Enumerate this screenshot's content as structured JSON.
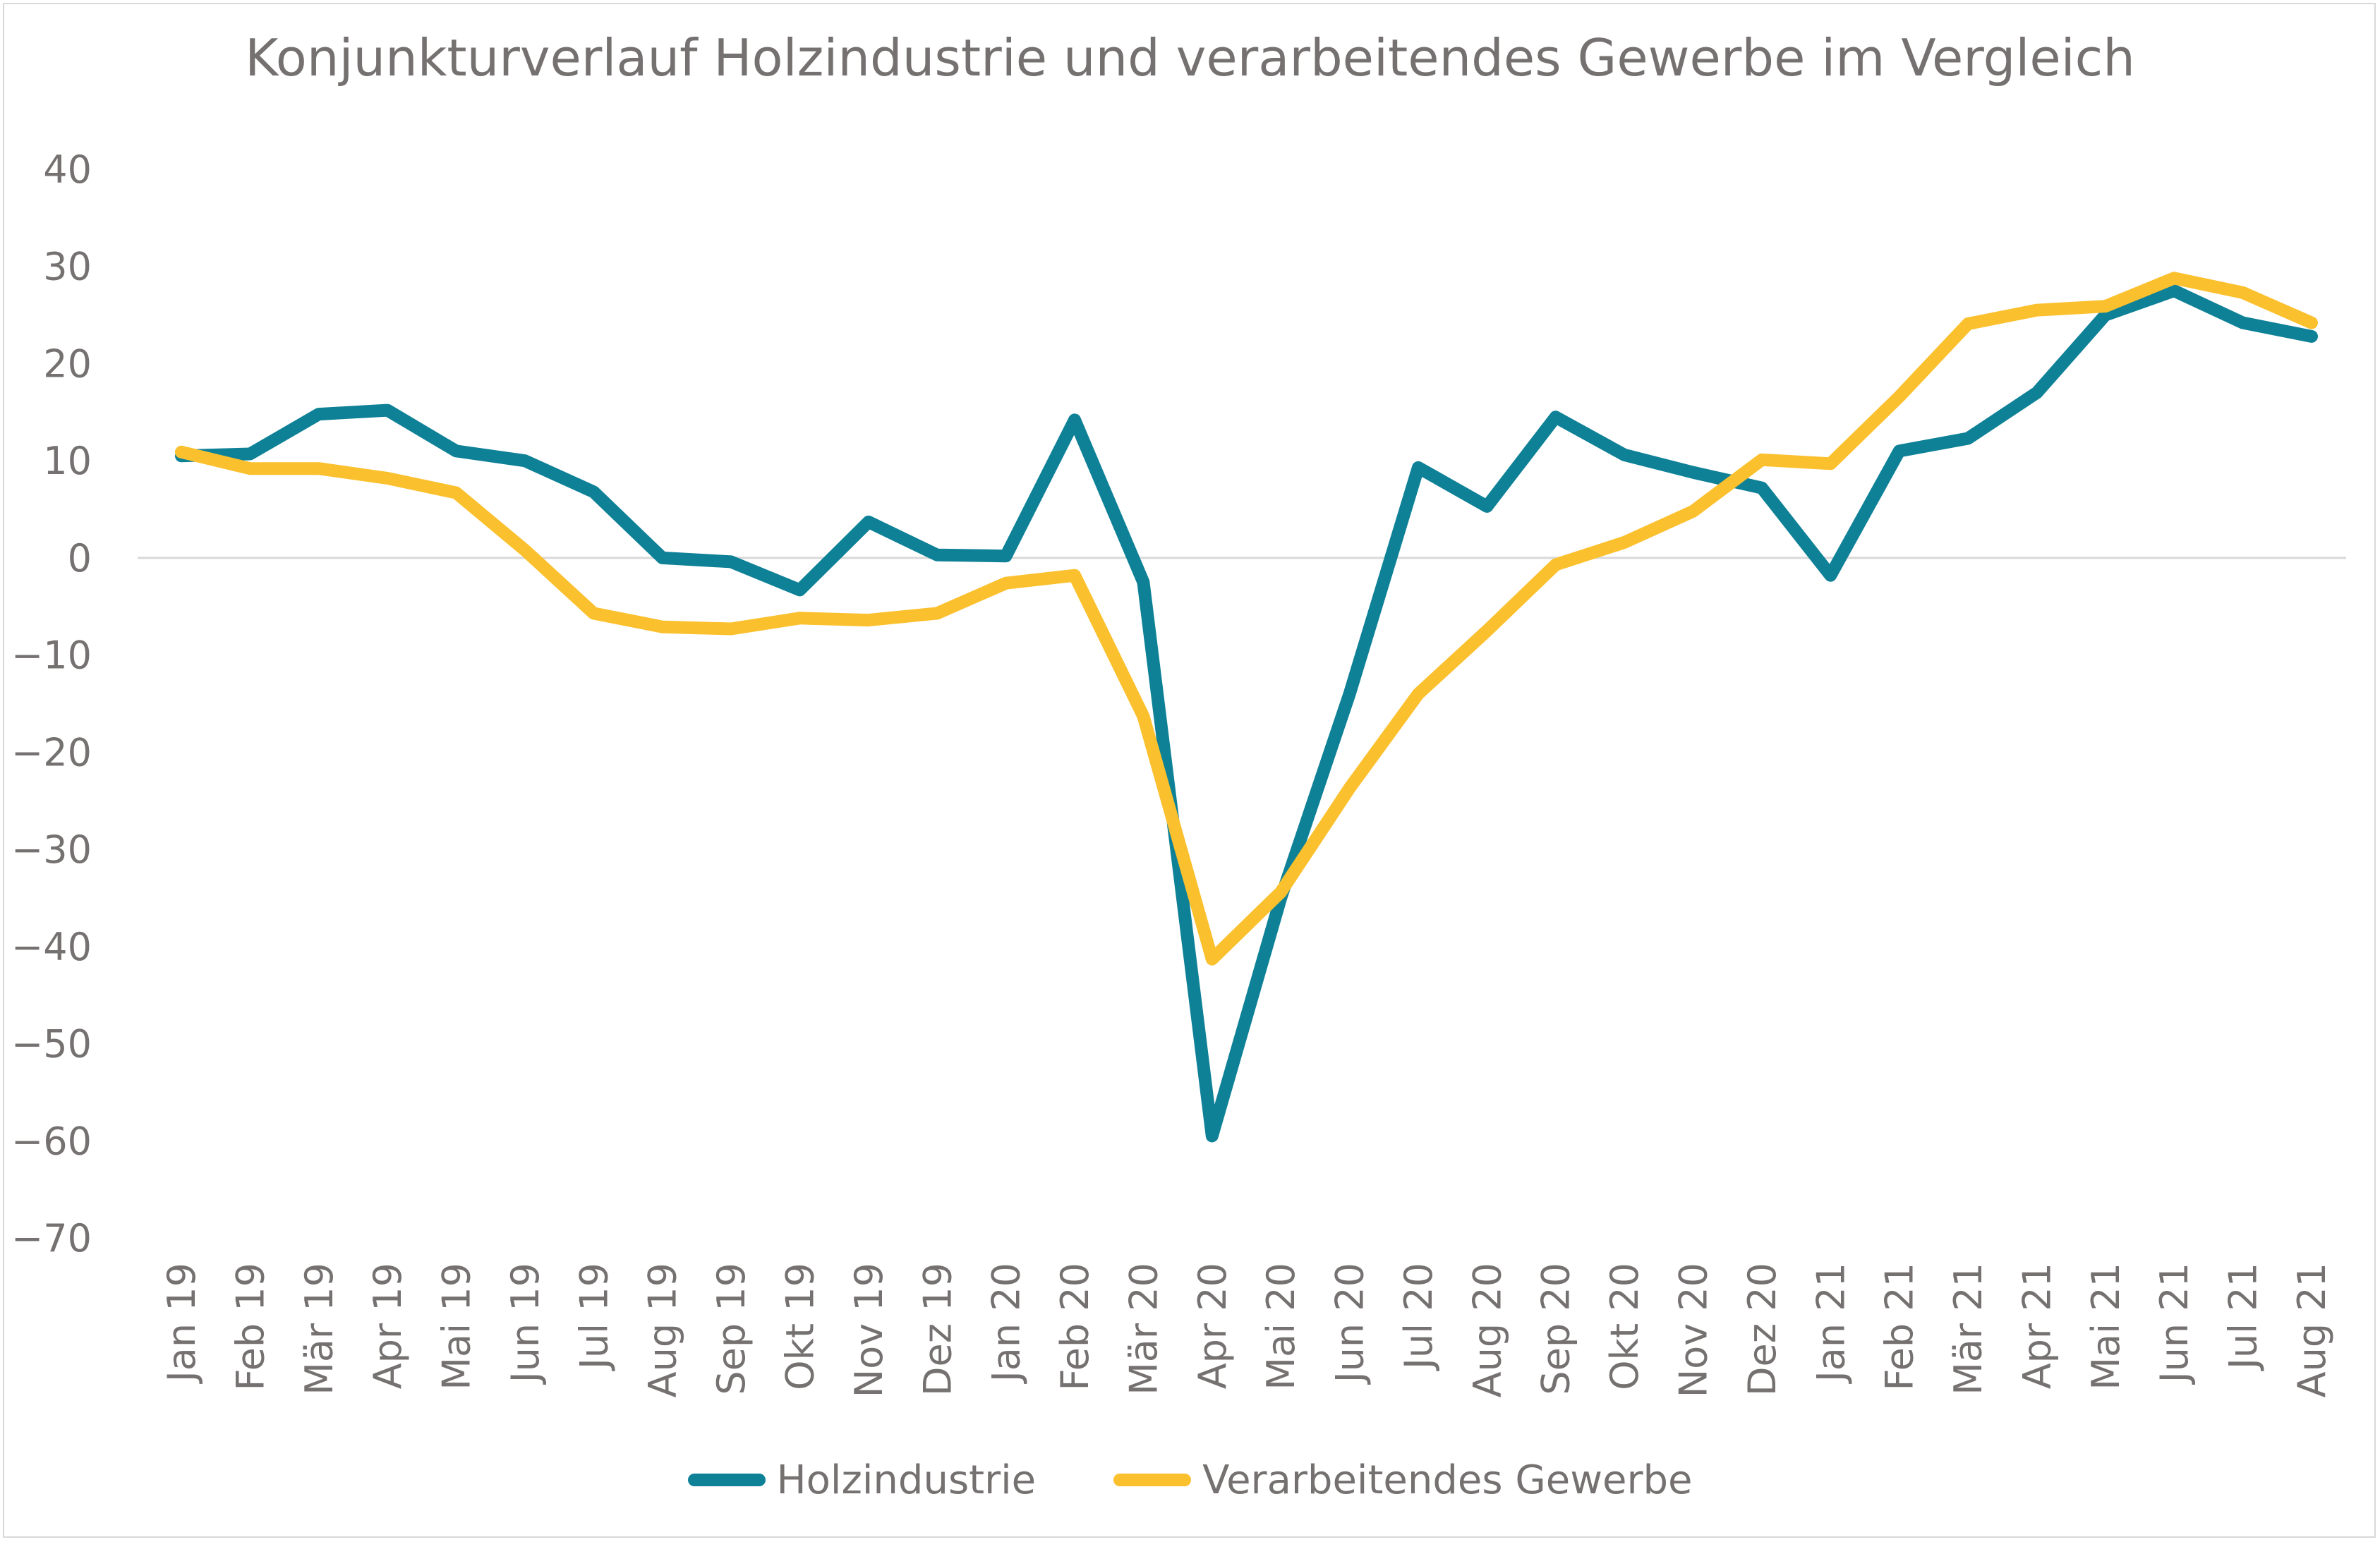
{
  "chart_data": {
    "type": "line",
    "title": "Konjunkturverlauf Holzindustrie und verarbeitendes Gewerbe im Vergleich",
    "categories": [
      "Jan 19",
      "Feb 19",
      "Mär 19",
      "Apr 19",
      "Mai 19",
      "Jun 19",
      "Jul 19",
      "Aug 19",
      "Sep 19",
      "Okt 19",
      "Nov 19",
      "Dez 19",
      "Jan 20",
      "Feb 20",
      "Mär 20",
      "Apr 20",
      "Mai 20",
      "Jun 20",
      "Jul 20",
      "Aug 20",
      "Sep 20",
      "Okt 20",
      "Nov 20",
      "Dez 20",
      "Jan 21",
      "Feb 21",
      "Mär 21",
      "Apr 21",
      "Mai 21",
      "Jun 21",
      "Jul 21",
      "Aug 21"
    ],
    "ylim": [
      -70,
      40
    ],
    "yticks": [
      40,
      30,
      20,
      10,
      0,
      -10,
      -20,
      -30,
      -40,
      -50,
      -60,
      -70
    ],
    "grid": "zero-line only",
    "legend_position": "bottom",
    "series": [
      {
        "name": "Holzindustrie",
        "color": "#0E8197",
        "values": [
          10.5,
          10.7,
          14.8,
          15.2,
          11.0,
          10.0,
          6.8,
          0.0,
          -0.4,
          -3.3,
          3.7,
          0.3,
          0.2,
          14.2,
          -2.5,
          -59.5,
          -35.0,
          -14.0,
          9.3,
          5.3,
          14.5,
          10.6,
          8.8,
          7.2,
          -1.8,
          11.0,
          12.3,
          17.0,
          25.0,
          27.5,
          24.2,
          22.8
        ]
      },
      {
        "name": "Verarbeitendes Gewerbe",
        "color": "#FBC02D",
        "values": [
          10.9,
          9.2,
          9.2,
          8.2,
          6.7,
          0.8,
          -5.7,
          -7.1,
          -7.3,
          -6.2,
          -6.4,
          -5.7,
          -2.6,
          -1.8,
          -16.3,
          -41.3,
          -34.4,
          -23.7,
          -14.0,
          -7.5,
          -0.7,
          1.6,
          4.8,
          10.1,
          9.7,
          16.6,
          24.1,
          25.5,
          25.9,
          28.8,
          27.3,
          24.2
        ]
      }
    ]
  }
}
